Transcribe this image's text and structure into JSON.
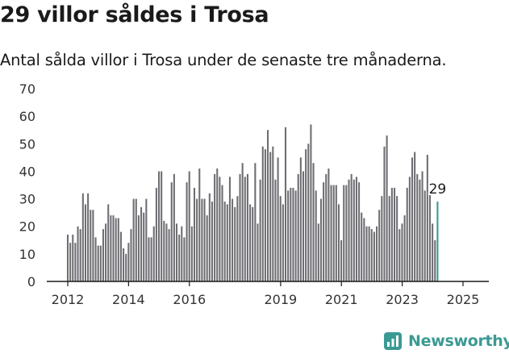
{
  "title": "29 villor såldes i Trosa",
  "subtitle": "Antal sålda villor i Trosa under de senaste tre månaderna.",
  "brand": "Newsworthy",
  "colors": {
    "bar": "#6e6d72",
    "highlight": "#3a9a93",
    "axis": "#1a1a1a",
    "brand": "#3a9a93"
  },
  "chart_data": {
    "type": "bar",
    "ylim": [
      0,
      70
    ],
    "y_ticks": [
      0,
      10,
      20,
      30,
      40,
      50,
      60,
      70
    ],
    "x_tick_labels": [
      "2012",
      "2014",
      "2016",
      "2019",
      "2021",
      "2023",
      "2025"
    ],
    "x_tick_values": [
      2012,
      2014,
      2016,
      2019,
      2021,
      2023,
      2025
    ],
    "x_start": 2012.0,
    "x_step_per_bar": 0.0833,
    "highlight_label": "29",
    "grid": false,
    "values": [
      17,
      14,
      17,
      14,
      20,
      19,
      32,
      28,
      32,
      26,
      26,
      16,
      13,
      13,
      19,
      21,
      28,
      24,
      24,
      23,
      23,
      18,
      12,
      10,
      14,
      19,
      30,
      30,
      24,
      27,
      25,
      30,
      16,
      16,
      20,
      34,
      40,
      40,
      22,
      21,
      19,
      36,
      39,
      21,
      17,
      20,
      16,
      36,
      40,
      20,
      34,
      30,
      41,
      30,
      30,
      24,
      32,
      29,
      39,
      41,
      38,
      35,
      29,
      28,
      38,
      30,
      27,
      31,
      39,
      43,
      38,
      39,
      28,
      27,
      43,
      21,
      37,
      49,
      48,
      55,
      47,
      49,
      37,
      45,
      31,
      28,
      56,
      33,
      34,
      34,
      33,
      39,
      45,
      40,
      48,
      50,
      57,
      43,
      33,
      21,
      30,
      36,
      39,
      41,
      35,
      35,
      35,
      28,
      15,
      35,
      35,
      37,
      39,
      37,
      38,
      36,
      25,
      23,
      20,
      20,
      19,
      18,
      20,
      26,
      31,
      49,
      53,
      31,
      34,
      34,
      31,
      19,
      21,
      24,
      34,
      38,
      45,
      47,
      39,
      37,
      40,
      33,
      46,
      33,
      21,
      15,
      29
    ]
  }
}
